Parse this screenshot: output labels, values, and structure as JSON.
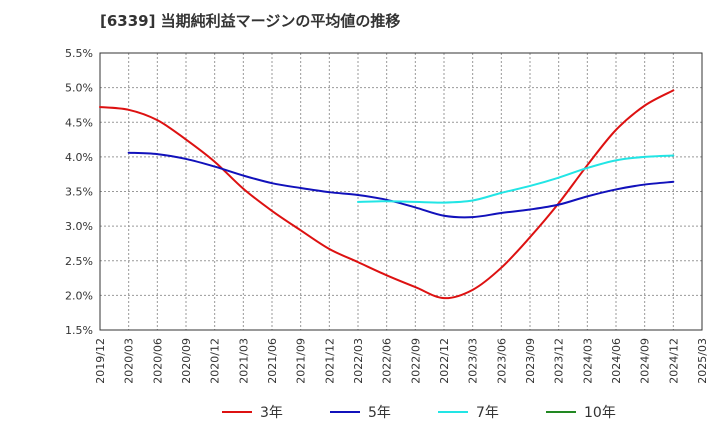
{
  "chart_data": {
    "type": "line",
    "title": "[6339]  当期純利益マージンの平均値の推移",
    "xlabel": "",
    "ylabel": "",
    "ylim": [
      1.5,
      5.5
    ],
    "y_ticks": [
      "1.5%",
      "2.0%",
      "2.5%",
      "3.0%",
      "3.5%",
      "4.0%",
      "4.5%",
      "5.0%",
      "5.5%"
    ],
    "x_ticks": [
      "2019/12",
      "2020/03",
      "2020/06",
      "2020/09",
      "2020/12",
      "2021/03",
      "2021/06",
      "2021/09",
      "2021/12",
      "2022/03",
      "2022/06",
      "2022/09",
      "2022/12",
      "2023/03",
      "2023/06",
      "2023/09",
      "2023/12",
      "2024/03",
      "2024/06",
      "2024/09",
      "2024/12",
      "2025/03"
    ],
    "grid": true,
    "legend_position": "bottom",
    "series": [
      {
        "name": "3年",
        "color": "#dd1111",
        "points": [
          [
            "2019/12",
            4.72
          ],
          [
            "2020/03",
            4.68
          ],
          [
            "2020/06",
            4.53
          ],
          [
            "2020/09",
            4.25
          ],
          [
            "2020/12",
            3.93
          ],
          [
            "2021/03",
            3.54
          ],
          [
            "2021/06",
            3.22
          ],
          [
            "2021/09",
            2.94
          ],
          [
            "2021/12",
            2.67
          ],
          [
            "2022/03",
            2.48
          ],
          [
            "2022/06",
            2.29
          ],
          [
            "2022/09",
            2.12
          ],
          [
            "2022/12",
            1.96
          ],
          [
            "2023/03",
            2.08
          ],
          [
            "2023/06",
            2.4
          ],
          [
            "2023/09",
            2.84
          ],
          [
            "2023/12",
            3.33
          ],
          [
            "2024/03",
            3.88
          ],
          [
            "2024/06",
            4.39
          ],
          [
            "2024/09",
            4.74
          ],
          [
            "2024/12",
            4.96
          ]
        ]
      },
      {
        "name": "5年",
        "color": "#1111bb",
        "points": [
          [
            "2020/03",
            4.06
          ],
          [
            "2020/06",
            4.04
          ],
          [
            "2020/09",
            3.97
          ],
          [
            "2020/12",
            3.86
          ],
          [
            "2021/03",
            3.73
          ],
          [
            "2021/06",
            3.62
          ],
          [
            "2021/09",
            3.55
          ],
          [
            "2021/12",
            3.49
          ],
          [
            "2022/03",
            3.45
          ],
          [
            "2022/06",
            3.38
          ],
          [
            "2022/09",
            3.27
          ],
          [
            "2022/12",
            3.15
          ],
          [
            "2023/03",
            3.13
          ],
          [
            "2023/06",
            3.19
          ],
          [
            "2023/09",
            3.24
          ],
          [
            "2023/12",
            3.31
          ],
          [
            "2024/03",
            3.43
          ],
          [
            "2024/06",
            3.53
          ],
          [
            "2024/09",
            3.6
          ],
          [
            "2024/12",
            3.64
          ]
        ]
      },
      {
        "name": "7年",
        "color": "#22e5e5",
        "points": [
          [
            "2022/03",
            3.35
          ],
          [
            "2022/06",
            3.36
          ],
          [
            "2022/09",
            3.35
          ],
          [
            "2022/12",
            3.34
          ],
          [
            "2023/03",
            3.37
          ],
          [
            "2023/06",
            3.48
          ],
          [
            "2023/09",
            3.58
          ],
          [
            "2023/12",
            3.7
          ],
          [
            "2024/03",
            3.84
          ],
          [
            "2024/06",
            3.95
          ],
          [
            "2024/09",
            4.0
          ],
          [
            "2024/12",
            4.02
          ]
        ]
      },
      {
        "name": "10年",
        "color": "#228822",
        "points": []
      }
    ]
  }
}
